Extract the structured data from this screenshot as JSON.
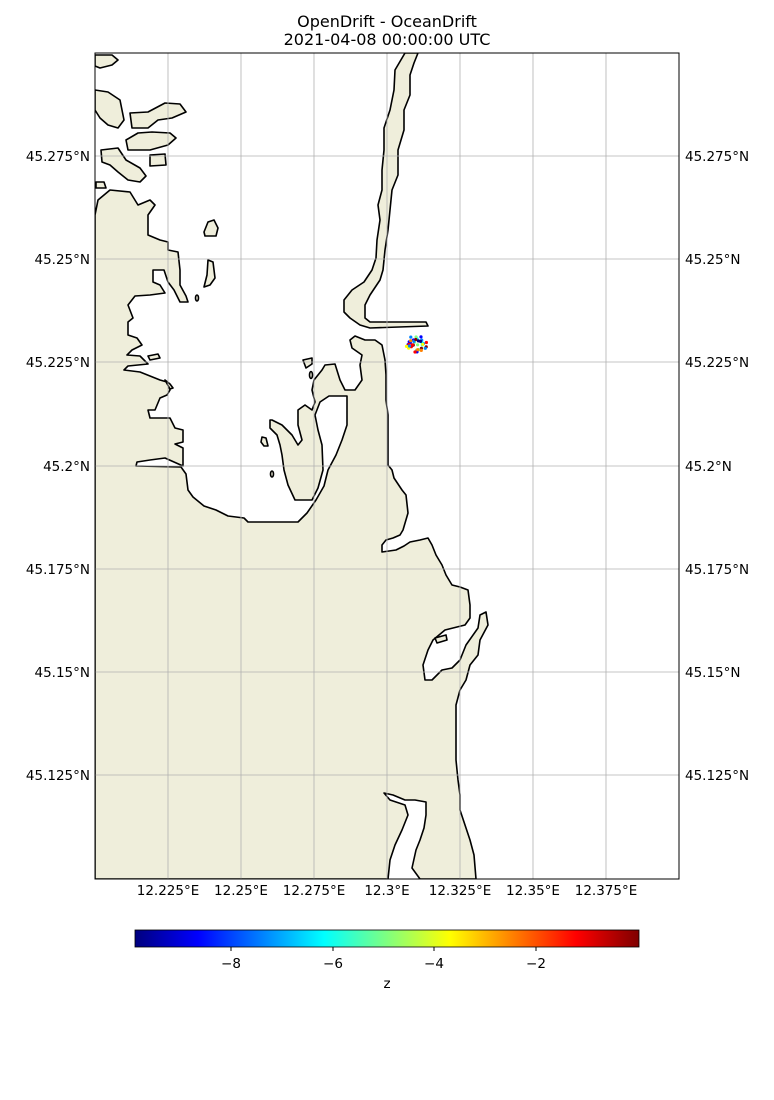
{
  "title": {
    "line1": "OpenDrift - OceanDrift",
    "line2": "2021-04-08 00:00:00 UTC"
  },
  "map": {
    "lon_range": [
      12.2,
      12.4
    ],
    "lat_range": [
      45.1,
      45.3
    ],
    "lon_ticks": [
      {
        "value": 12.225,
        "label": "12.225°E"
      },
      {
        "value": 12.25,
        "label": "12.25°E"
      },
      {
        "value": 12.275,
        "label": "12.275°E"
      },
      {
        "value": 12.3,
        "label": "12.3°E"
      },
      {
        "value": 12.325,
        "label": "12.325°E"
      },
      {
        "value": 12.35,
        "label": "12.35°E"
      },
      {
        "value": 12.375,
        "label": "12.375°E"
      }
    ],
    "lat_ticks": [
      {
        "value": 45.275,
        "label": "45.275°N"
      },
      {
        "value": 45.25,
        "label": "45.25°N"
      },
      {
        "value": 45.225,
        "label": "45.225°N"
      },
      {
        "value": 45.2,
        "label": "45.2°N"
      },
      {
        "value": 45.175,
        "label": "45.175°N"
      },
      {
        "value": 45.15,
        "label": "45.15°N"
      },
      {
        "value": 45.125,
        "label": "45.125°N"
      }
    ],
    "land_color": "#efeedb",
    "coast_color": "#000000",
    "grid_color": "#b0b0b0",
    "particle_cluster": {
      "center_lon": 12.31,
      "center_lat": 45.2295,
      "count": 40
    }
  },
  "colorbar": {
    "label": "z",
    "colormap": "jet",
    "ticks": [
      "−8",
      "−6",
      "−4",
      "−2"
    ]
  }
}
